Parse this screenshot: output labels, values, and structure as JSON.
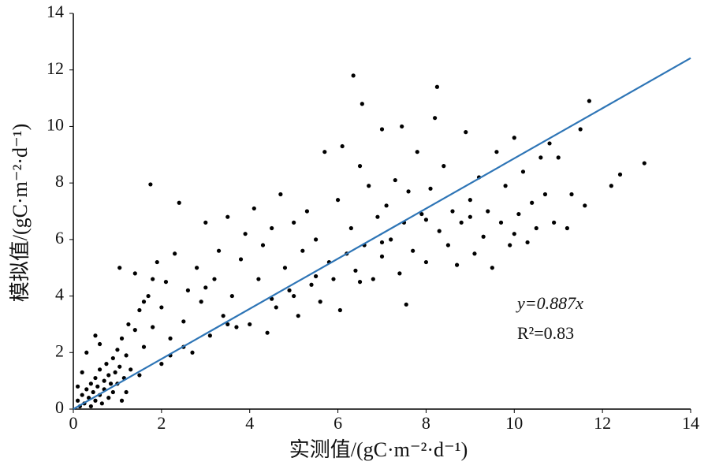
{
  "chart_data": {
    "type": "scatter",
    "x_label": "实测值/(gC·m⁻²·d⁻¹)",
    "y_label": "模拟值/(gC·m⁻²·d⁻¹)",
    "annotations": [
      "y=0.887x",
      "R²=0.83"
    ],
    "fit": {
      "slope": 0.887,
      "color": "#2e75b6"
    },
    "xlim": [
      0,
      14
    ],
    "ylim": [
      0,
      14
    ],
    "xticks": [
      0,
      2,
      4,
      6,
      8,
      10,
      12,
      14
    ],
    "yticks": [
      0,
      2,
      4,
      6,
      8,
      10,
      12,
      14
    ],
    "grid": false,
    "series": [
      {
        "color": "#000000",
        "x": [
          0.1,
          0.15,
          0.2,
          0.25,
          0.3,
          0.35,
          0.4,
          0.4,
          0.45,
          0.5,
          0.5,
          0.55,
          0.6,
          0.6,
          0.65,
          0.7,
          0.7,
          0.75,
          0.8,
          0.8,
          0.85,
          0.9,
          0.9,
          0.95,
          1.0,
          1.0,
          1.05,
          1.1,
          1.1,
          1.15,
          1.2,
          1.2,
          1.25,
          1.3,
          0.2,
          0.3,
          0.5,
          0.1,
          0.6,
          1.05,
          1.4,
          1.5,
          1.6,
          1.7,
          1.75,
          1.8,
          1.9,
          2.0,
          2.0,
          2.1,
          2.2,
          2.3,
          2.4,
          2.5,
          2.6,
          2.7,
          2.8,
          2.9,
          3.0,
          3.1,
          3.2,
          3.3,
          3.4,
          3.5,
          3.6,
          3.7,
          3.8,
          3.9,
          4.0,
          4.1,
          4.2,
          4.3,
          4.4,
          4.5,
          4.6,
          4.7,
          4.8,
          4.9,
          5.0,
          5.1,
          5.2,
          5.3,
          5.4,
          5.5,
          5.6,
          5.7,
          5.8,
          5.9,
          6.0,
          6.05,
          6.1,
          6.2,
          6.3,
          6.35,
          6.4,
          6.5,
          6.55,
          6.6,
          6.7,
          6.8,
          6.9,
          7.0,
          7.0,
          7.1,
          7.2,
          7.3,
          7.4,
          7.45,
          7.5,
          7.55,
          7.6,
          7.7,
          7.8,
          7.9,
          8.0,
          8.1,
          8.2,
          8.25,
          8.3,
          8.4,
          8.5,
          8.6,
          8.7,
          8.8,
          8.9,
          9.0,
          9.1,
          9.2,
          9.3,
          9.4,
          9.5,
          9.6,
          9.7,
          9.8,
          9.9,
          10.0,
          10.1,
          10.2,
          10.3,
          10.4,
          10.5,
          10.6,
          10.7,
          10.8,
          10.9,
          11.0,
          11.2,
          11.3,
          11.5,
          11.6,
          11.7,
          12.2,
          12.4,
          12.95,
          1.4,
          1.5,
          1.6,
          1.8,
          2.2,
          2.5,
          3.0,
          3.5,
          4.5,
          5.0,
          5.5,
          6.5,
          7.0,
          8.0,
          9.0,
          10.0
        ],
        "values": [
          0.3,
          0.1,
          0.5,
          0.2,
          0.7,
          0.4,
          0.1,
          0.9,
          0.6,
          0.3,
          1.1,
          0.8,
          0.5,
          1.4,
          0.2,
          1.0,
          0.7,
          1.6,
          0.4,
          1.2,
          0.9,
          1.8,
          0.6,
          1.3,
          2.1,
          0.9,
          1.5,
          0.3,
          2.5,
          1.1,
          1.9,
          0.6,
          3.0,
          1.4,
          1.3,
          2.0,
          2.6,
          0.8,
          2.3,
          5.0,
          4.8,
          3.5,
          2.2,
          4.0,
          7.95,
          2.9,
          5.2,
          1.6,
          3.6,
          4.5,
          2.5,
          5.5,
          7.3,
          3.1,
          4.2,
          2.0,
          5.0,
          3.8,
          6.6,
          2.6,
          4.6,
          5.6,
          3.3,
          6.8,
          4.0,
          2.9,
          5.3,
          6.2,
          3.0,
          7.1,
          4.6,
          5.8,
          2.7,
          6.4,
          3.6,
          7.6,
          5.0,
          4.2,
          6.6,
          3.3,
          5.6,
          7.0,
          4.4,
          6.0,
          3.8,
          9.1,
          5.2,
          4.6,
          7.4,
          3.5,
          9.3,
          5.5,
          6.4,
          11.8,
          4.9,
          8.6,
          10.8,
          5.8,
          7.9,
          4.6,
          6.8,
          9.9,
          5.4,
          7.2,
          6.0,
          8.1,
          4.8,
          10.0,
          6.6,
          3.7,
          7.7,
          5.6,
          9.1,
          6.9,
          5.2,
          7.8,
          10.3,
          11.4,
          6.3,
          8.6,
          5.8,
          7.0,
          5.1,
          6.6,
          9.8,
          7.4,
          5.5,
          8.2,
          6.1,
          7.0,
          5.0,
          9.1,
          6.6,
          7.9,
          5.8,
          9.6,
          6.9,
          8.4,
          5.9,
          7.3,
          6.4,
          8.9,
          7.6,
          9.4,
          6.6,
          8.9,
          6.4,
          7.6,
          9.9,
          7.2,
          10.9,
          7.9,
          8.3,
          8.7,
          2.8,
          1.2,
          3.8,
          4.6,
          1.9,
          2.2,
          4.3,
          3.0,
          3.9,
          4.0,
          4.7,
          4.5,
          5.9,
          6.7,
          6.8,
          6.2
        ]
      }
    ]
  }
}
